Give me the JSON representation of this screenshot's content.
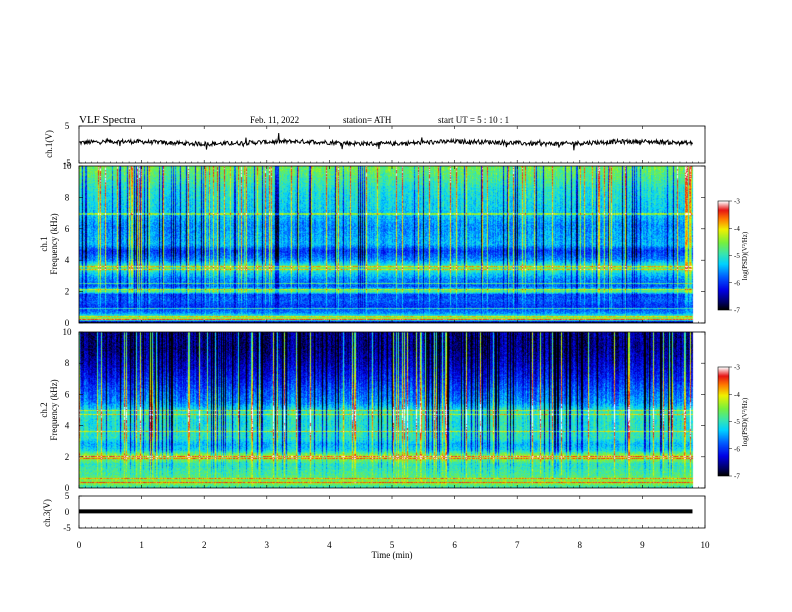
{
  "header": {
    "title": "VLF  Spectra",
    "date": "Feb. 11, 2022",
    "station": "station= ATH",
    "start": "start  UT  =    5  : 10 : 1"
  },
  "chart_data": [
    {
      "type": "line",
      "name": "ch1-waveform",
      "ylabel": "ch.1(V)",
      "ylim": [
        -5,
        5
      ],
      "yticks": [
        "5",
        "-5"
      ],
      "x_range_min": [
        0,
        9.8
      ],
      "baseline_v": 0.5,
      "noise_v": 0.6
    },
    {
      "type": "heatmap",
      "name": "ch1-spectrogram",
      "ylabel": "ch.1\nFrequency  (kHz)",
      "ylim": [
        0,
        10
      ],
      "yticks": [
        "0",
        "2",
        "4",
        "6",
        "8",
        "10"
      ],
      "x_range_min": [
        0,
        9.8
      ],
      "colorbar": {
        "label": "log(PSD)(V²/Hz)",
        "range": [
          -7,
          -3
        ],
        "ticks": [
          "-3",
          "-4",
          "-5",
          "-6",
          "-7"
        ]
      },
      "profile_khz_level": [
        [
          0,
          -7.0
        ],
        [
          0.2,
          -4.2
        ],
        [
          0.6,
          -5.6
        ],
        [
          1.0,
          -6.0
        ],
        [
          1.4,
          -5.8
        ],
        [
          1.8,
          -5.9
        ],
        [
          2.0,
          -4.6
        ],
        [
          2.3,
          -5.8
        ],
        [
          2.8,
          -5.6
        ],
        [
          3.2,
          -5.2
        ],
        [
          3.5,
          -4.6
        ],
        [
          4.0,
          -5.6
        ],
        [
          4.6,
          -6.0
        ],
        [
          5.0,
          -5.4
        ],
        [
          5.6,
          -5.5
        ],
        [
          6.2,
          -5.6
        ],
        [
          7.0,
          -5.3
        ],
        [
          7.8,
          -5.2
        ],
        [
          8.5,
          -5.1
        ],
        [
          9.3,
          -4.8
        ],
        [
          10,
          -4.6
        ]
      ],
      "lines_khz": [
        0.2,
        0.4,
        0.9,
        2.1,
        2.5,
        3.4,
        3.6,
        6.9,
        7.0
      ]
    },
    {
      "type": "heatmap",
      "name": "ch2-spectrogram",
      "ylabel": "ch.2\nFrequency  (kHz)",
      "ylim": [
        0,
        10
      ],
      "yticks": [
        "0",
        "2",
        "4",
        "6",
        "8",
        "10"
      ],
      "x_range_min": [
        0,
        9.8
      ],
      "colorbar": {
        "label": "log(PSD)(V²/Hz)",
        "range": [
          -7,
          -3
        ],
        "ticks": [
          "-3",
          "-4",
          "-5",
          "-6",
          "-7"
        ]
      },
      "profile_khz_level": [
        [
          0,
          -5.0
        ],
        [
          0.3,
          -4.4
        ],
        [
          0.8,
          -4.8
        ],
        [
          1.5,
          -5.0
        ],
        [
          2.0,
          -4.2
        ],
        [
          2.4,
          -5.2
        ],
        [
          2.8,
          -5.4
        ],
        [
          3.2,
          -5.0
        ],
        [
          3.6,
          -5.0
        ],
        [
          4.2,
          -5.1
        ],
        [
          4.8,
          -4.9
        ],
        [
          5.5,
          -5.6
        ],
        [
          6.2,
          -5.8
        ],
        [
          7.0,
          -6.1
        ],
        [
          8.0,
          -6.4
        ],
        [
          9.0,
          -6.6
        ],
        [
          10,
          -6.6
        ]
      ],
      "lines_khz": [
        0.3,
        0.6,
        1.9,
        2.0,
        3.6,
        4.7,
        5.0
      ]
    },
    {
      "type": "line",
      "name": "ch3-waveform",
      "ylabel": "ch.3(V)",
      "ylim": [
        -5,
        5
      ],
      "yticks": [
        "5",
        "0",
        "-5"
      ],
      "x_range_min": [
        0,
        9.8
      ],
      "baseline_v": 0.2
    }
  ],
  "xaxis": {
    "label": "Time  (min)",
    "range": [
      0,
      10
    ],
    "ticks": [
      "0",
      "1",
      "2",
      "3",
      "4",
      "5",
      "6",
      "7",
      "8",
      "9",
      "10"
    ]
  }
}
